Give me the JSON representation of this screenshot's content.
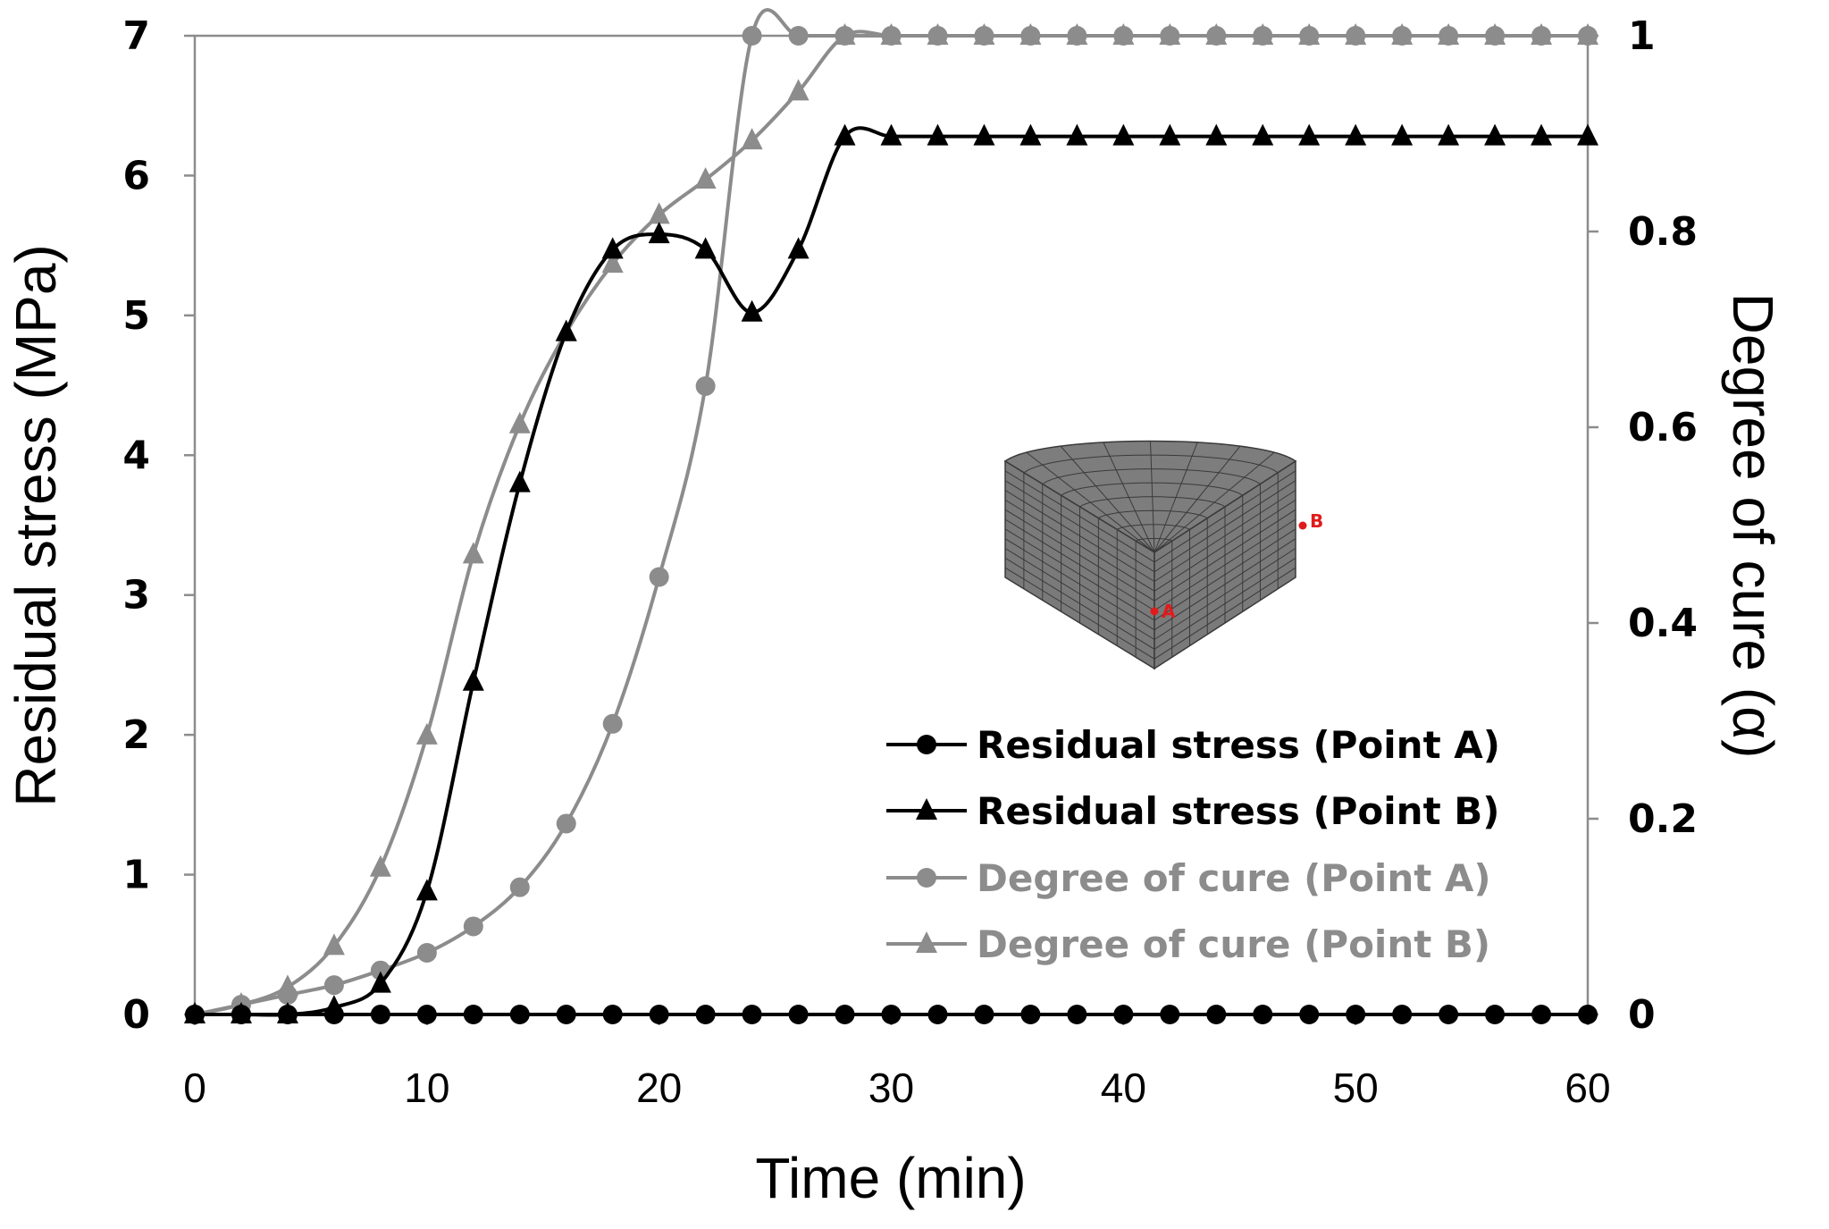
{
  "chart_data": {
    "type": "line",
    "title": "",
    "xlabel": "Time (min)",
    "ylabel_left": "Residual stress (MPa)",
    "ylabel_right": "Degree of cure (α)",
    "xlim": [
      0,
      60
    ],
    "ylim_left": [
      0,
      7
    ],
    "ylim_right": [
      0,
      1
    ],
    "x_ticks": [
      "0",
      "10",
      "20",
      "30",
      "40",
      "50",
      "60"
    ],
    "y_left_ticks": [
      "0",
      "1",
      "2",
      "3",
      "4",
      "5",
      "6",
      "7"
    ],
    "y_right_ticks": [
      "0",
      "0.2",
      "0.4",
      "0.6",
      "0.8",
      "1"
    ],
    "grid": false,
    "legend_position": "lower-right",
    "x": [
      0,
      2,
      4,
      6,
      8,
      10,
      12,
      14,
      16,
      18,
      20,
      22,
      24,
      26,
      28,
      30,
      32,
      34,
      36,
      38,
      40,
      42,
      44,
      46,
      48,
      50,
      52,
      54,
      56,
      58,
      60
    ],
    "series": [
      {
        "name": "Residual stress (Point A)",
        "axis": "left",
        "marker": "circle",
        "color": "#000000",
        "values": [
          0,
          0,
          0,
          0,
          0,
          0,
          0,
          0,
          0,
          0,
          0,
          0,
          0,
          0,
          0,
          0,
          0,
          0,
          0,
          0,
          0,
          0,
          0,
          0,
          0,
          0,
          0,
          0,
          0,
          0,
          0
        ]
      },
      {
        "name": "Residual stress (Point B)",
        "axis": "left",
        "marker": "triangle",
        "color": "#000000",
        "values": [
          0,
          0,
          0,
          0.05,
          0.22,
          0.88,
          2.38,
          3.8,
          4.88,
          5.47,
          5.58,
          5.47,
          5.02,
          5.47,
          6.28,
          6.28,
          6.28,
          6.28,
          6.28,
          6.28,
          6.28,
          6.28,
          6.28,
          6.28,
          6.28,
          6.28,
          6.28,
          6.28,
          6.28,
          6.28,
          6.28
        ]
      },
      {
        "name": "Degree of cure (Point A)",
        "axis": "right",
        "marker": "circle",
        "color": "#8c8c8c",
        "values": [
          0,
          0.01,
          0.02,
          0.03,
          0.045,
          0.063,
          0.09,
          0.13,
          0.195,
          0.297,
          0.447,
          0.642,
          1.0,
          1.0,
          1.0,
          1.0,
          1.0,
          1.0,
          1.0,
          1.0,
          1.0,
          1.0,
          1.0,
          1.0,
          1.0,
          1.0,
          1.0,
          1.0,
          1.0,
          1.0,
          1.0
        ]
      },
      {
        "name": "Degree of cure (Point B)",
        "axis": "right",
        "marker": "triangle",
        "color": "#8c8c8c",
        "values": [
          0,
          0.01,
          0.028,
          0.07,
          0.15,
          0.285,
          0.47,
          0.603,
          0.697,
          0.767,
          0.817,
          0.853,
          0.893,
          0.943,
          1.0,
          1.0,
          1.0,
          1.0,
          1.0,
          1.0,
          1.0,
          1.0,
          1.0,
          1.0,
          1.0,
          1.0,
          1.0,
          1.0,
          1.0,
          1.0,
          1.0
        ]
      }
    ],
    "inset": {
      "point_a_label": "A",
      "point_b_label": "B"
    }
  }
}
